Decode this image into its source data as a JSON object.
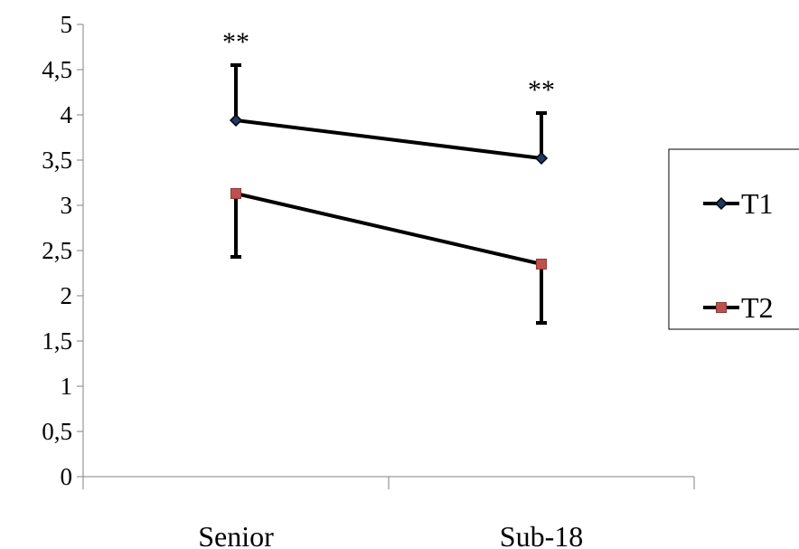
{
  "chart_data": {
    "type": "line",
    "categories": [
      "Senior",
      "Sub-18"
    ],
    "series": [
      {
        "name": "T1",
        "values": [
          3.94,
          3.52
        ],
        "error_high": [
          4.55,
          4.02
        ],
        "color": "#1f3864",
        "marker": "diamond"
      },
      {
        "name": "T2",
        "values": [
          3.13,
          2.35
        ],
        "error_low": [
          2.43,
          1.7
        ],
        "color": "#c0504d",
        "marker": "square"
      }
    ],
    "yticks": [
      "0",
      "0,5",
      "1",
      "1,5",
      "2",
      "2,5",
      "3",
      "3,5",
      "4",
      "4,5",
      "5"
    ],
    "ylim": [
      0,
      5
    ],
    "annotations": [
      {
        "text": "**",
        "category": "Senior"
      },
      {
        "text": "**",
        "category": "Sub-18"
      }
    ],
    "legend_position": "right",
    "grid": false,
    "title": "",
    "xlabel": "",
    "ylabel": ""
  }
}
